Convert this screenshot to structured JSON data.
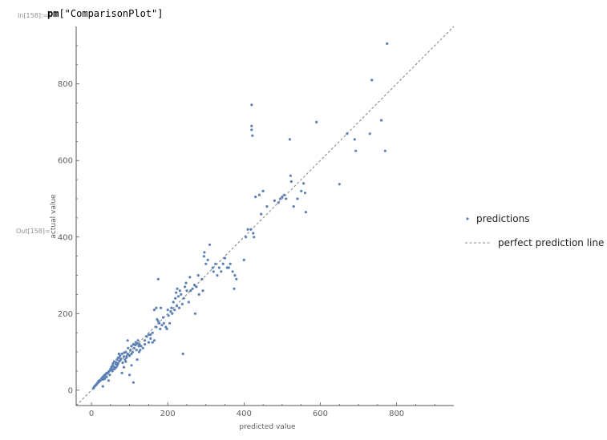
{
  "notebook": {
    "input_label": "In[158]:=",
    "input_code_symbol": "pm",
    "input_code_arg": "[\"ComparisonPlot\"]",
    "output_label": "Out[158]="
  },
  "colors": {
    "points": "#5e81b5",
    "reference_line": "#8a8a8a",
    "axes": "#555555"
  },
  "chart_data": {
    "type": "scatter",
    "xlabel": "predicted value",
    "ylabel": "actual value",
    "xlim": [
      -40,
      950
    ],
    "ylim": [
      -40,
      950
    ],
    "xticks": [
      0,
      200,
      400,
      600,
      800
    ],
    "yticks": [
      0,
      200,
      400,
      600,
      800
    ],
    "legend_position": "right",
    "series": [
      {
        "name": "predictions",
        "kind": "points",
        "points": [
          [
            5,
            5
          ],
          [
            7,
            8
          ],
          [
            8,
            10
          ],
          [
            10,
            12
          ],
          [
            12,
            14
          ],
          [
            14,
            16
          ],
          [
            15,
            18
          ],
          [
            17,
            20
          ],
          [
            18,
            22
          ],
          [
            20,
            22
          ],
          [
            20,
            25
          ],
          [
            22,
            24
          ],
          [
            24,
            26
          ],
          [
            25,
            28
          ],
          [
            26,
            30
          ],
          [
            28,
            32
          ],
          [
            30,
            28
          ],
          [
            30,
            35
          ],
          [
            32,
            34
          ],
          [
            33,
            38
          ],
          [
            35,
            30
          ],
          [
            35,
            40
          ],
          [
            36,
            36
          ],
          [
            38,
            42
          ],
          [
            40,
            35
          ],
          [
            40,
            45
          ],
          [
            42,
            44
          ],
          [
            45,
            48
          ],
          [
            47,
            50
          ],
          [
            48,
            40
          ],
          [
            50,
            55
          ],
          [
            52,
            60
          ],
          [
            54,
            55
          ],
          [
            55,
            50
          ],
          [
            55,
            65
          ],
          [
            57,
            70
          ],
          [
            58,
            62
          ],
          [
            60,
            60
          ],
          [
            60,
            75
          ],
          [
            62,
            58
          ],
          [
            64,
            68
          ],
          [
            65,
            72
          ],
          [
            67,
            80
          ],
          [
            68,
            65
          ],
          [
            70,
            70
          ],
          [
            72,
            85
          ],
          [
            73,
            76
          ],
          [
            75,
            78
          ],
          [
            75,
            90
          ],
          [
            78,
            82
          ],
          [
            80,
            95
          ],
          [
            82,
            72
          ],
          [
            85,
            88
          ],
          [
            86,
            98
          ],
          [
            88,
            80
          ],
          [
            90,
            100
          ],
          [
            92,
            85
          ],
          [
            95,
            95
          ],
          [
            96,
            110
          ],
          [
            100,
            90
          ],
          [
            102,
            105
          ],
          [
            105,
            115
          ],
          [
            108,
            100
          ],
          [
            110,
            120
          ],
          [
            112,
            110
          ],
          [
            115,
            118
          ],
          [
            116,
            125
          ],
          [
            118,
            105
          ],
          [
            120,
            122
          ],
          [
            122,
            130
          ],
          [
            124,
            115
          ],
          [
            126,
            120
          ],
          [
            30,
            10
          ],
          [
            45,
            25
          ],
          [
            60,
            55
          ],
          [
            65,
            60
          ],
          [
            70,
            85
          ],
          [
            72,
            95
          ],
          [
            80,
            45
          ],
          [
            85,
            60
          ],
          [
            90,
            75
          ],
          [
            95,
            130
          ],
          [
            100,
            40
          ],
          [
            105,
            65
          ],
          [
            110,
            20
          ],
          [
            120,
            80
          ],
          [
            125,
            100
          ],
          [
            130,
            115
          ],
          [
            140,
            130
          ],
          [
            150,
            125
          ],
          [
            155,
            145
          ],
          [
            160,
            150
          ],
          [
            165,
            130
          ],
          [
            170,
            165
          ],
          [
            172,
            185
          ],
          [
            175,
            180
          ],
          [
            178,
            175
          ],
          [
            180,
            160
          ],
          [
            182,
            215
          ],
          [
            185,
            170
          ],
          [
            188,
            190
          ],
          [
            190,
            175
          ],
          [
            195,
            165
          ],
          [
            198,
            160
          ],
          [
            200,
            210
          ],
          [
            202,
            195
          ],
          [
            205,
            175
          ],
          [
            208,
            205
          ],
          [
            210,
            215
          ],
          [
            212,
            200
          ],
          [
            215,
            230
          ],
          [
            218,
            210
          ],
          [
            220,
            240
          ],
          [
            222,
            255
          ],
          [
            224,
            220
          ],
          [
            225,
            265
          ],
          [
            228,
            245
          ],
          [
            230,
            215
          ],
          [
            232,
            260
          ],
          [
            235,
            250
          ],
          [
            238,
            225
          ],
          [
            240,
            95
          ],
          [
            242,
            240
          ],
          [
            245,
            270
          ],
          [
            248,
            280
          ],
          [
            250,
            260
          ],
          [
            255,
            230
          ],
          [
            258,
            295
          ],
          [
            260,
            260
          ],
          [
            265,
            265
          ],
          [
            270,
            275
          ],
          [
            272,
            200
          ],
          [
            275,
            270
          ],
          [
            280,
            300
          ],
          [
            282,
            250
          ],
          [
            290,
            290
          ],
          [
            292,
            260
          ],
          [
            295,
            350
          ],
          [
            296,
            360
          ],
          [
            300,
            330
          ],
          [
            305,
            340
          ],
          [
            310,
            380
          ],
          [
            318,
            320
          ],
          [
            320,
            310
          ],
          [
            325,
            330
          ],
          [
            330,
            300
          ],
          [
            335,
            320
          ],
          [
            340,
            310
          ],
          [
            345,
            330
          ],
          [
            350,
            345
          ],
          [
            356,
            320
          ],
          [
            360,
            320
          ],
          [
            364,
            330
          ],
          [
            370,
            310
          ],
          [
            374,
            265
          ],
          [
            376,
            300
          ],
          [
            380,
            290
          ],
          [
            400,
            340
          ],
          [
            405,
            400
          ],
          [
            410,
            420
          ],
          [
            418,
            420
          ],
          [
            420,
            745
          ],
          [
            420,
            690
          ],
          [
            420,
            680
          ],
          [
            422,
            665
          ],
          [
            424,
            410
          ],
          [
            426,
            400
          ],
          [
            430,
            505
          ],
          [
            440,
            510
          ],
          [
            445,
            460
          ],
          [
            450,
            520
          ],
          [
            460,
            480
          ],
          [
            480,
            495
          ],
          [
            490,
            490
          ],
          [
            495,
            500
          ],
          [
            500,
            505
          ],
          [
            505,
            510
          ],
          [
            510,
            500
          ],
          [
            520,
            655
          ],
          [
            522,
            560
          ],
          [
            524,
            545
          ],
          [
            530,
            480
          ],
          [
            540,
            500
          ],
          [
            550,
            520
          ],
          [
            556,
            540
          ],
          [
            560,
            515
          ],
          [
            562,
            465
          ],
          [
            590,
            700
          ],
          [
            650,
            538
          ],
          [
            670,
            670
          ],
          [
            690,
            655
          ],
          [
            693,
            625
          ],
          [
            730,
            670
          ],
          [
            735,
            810
          ],
          [
            760,
            705
          ],
          [
            770,
            625
          ],
          [
            775,
            905
          ],
          [
            165,
            210
          ],
          [
            170,
            215
          ],
          [
            175,
            290
          ],
          [
            155,
            135
          ],
          [
            160,
            125
          ],
          [
            150,
            145
          ],
          [
            145,
            140
          ],
          [
            140,
            120
          ],
          [
            135,
            110
          ],
          [
            128,
            105
          ],
          [
            105,
            95
          ],
          [
            98,
            92
          ],
          [
            92,
            88
          ]
        ]
      },
      {
        "name": "perfect prediction line",
        "kind": "line",
        "from": [
          -40,
          -40
        ],
        "to": [
          950,
          950
        ]
      }
    ]
  }
}
